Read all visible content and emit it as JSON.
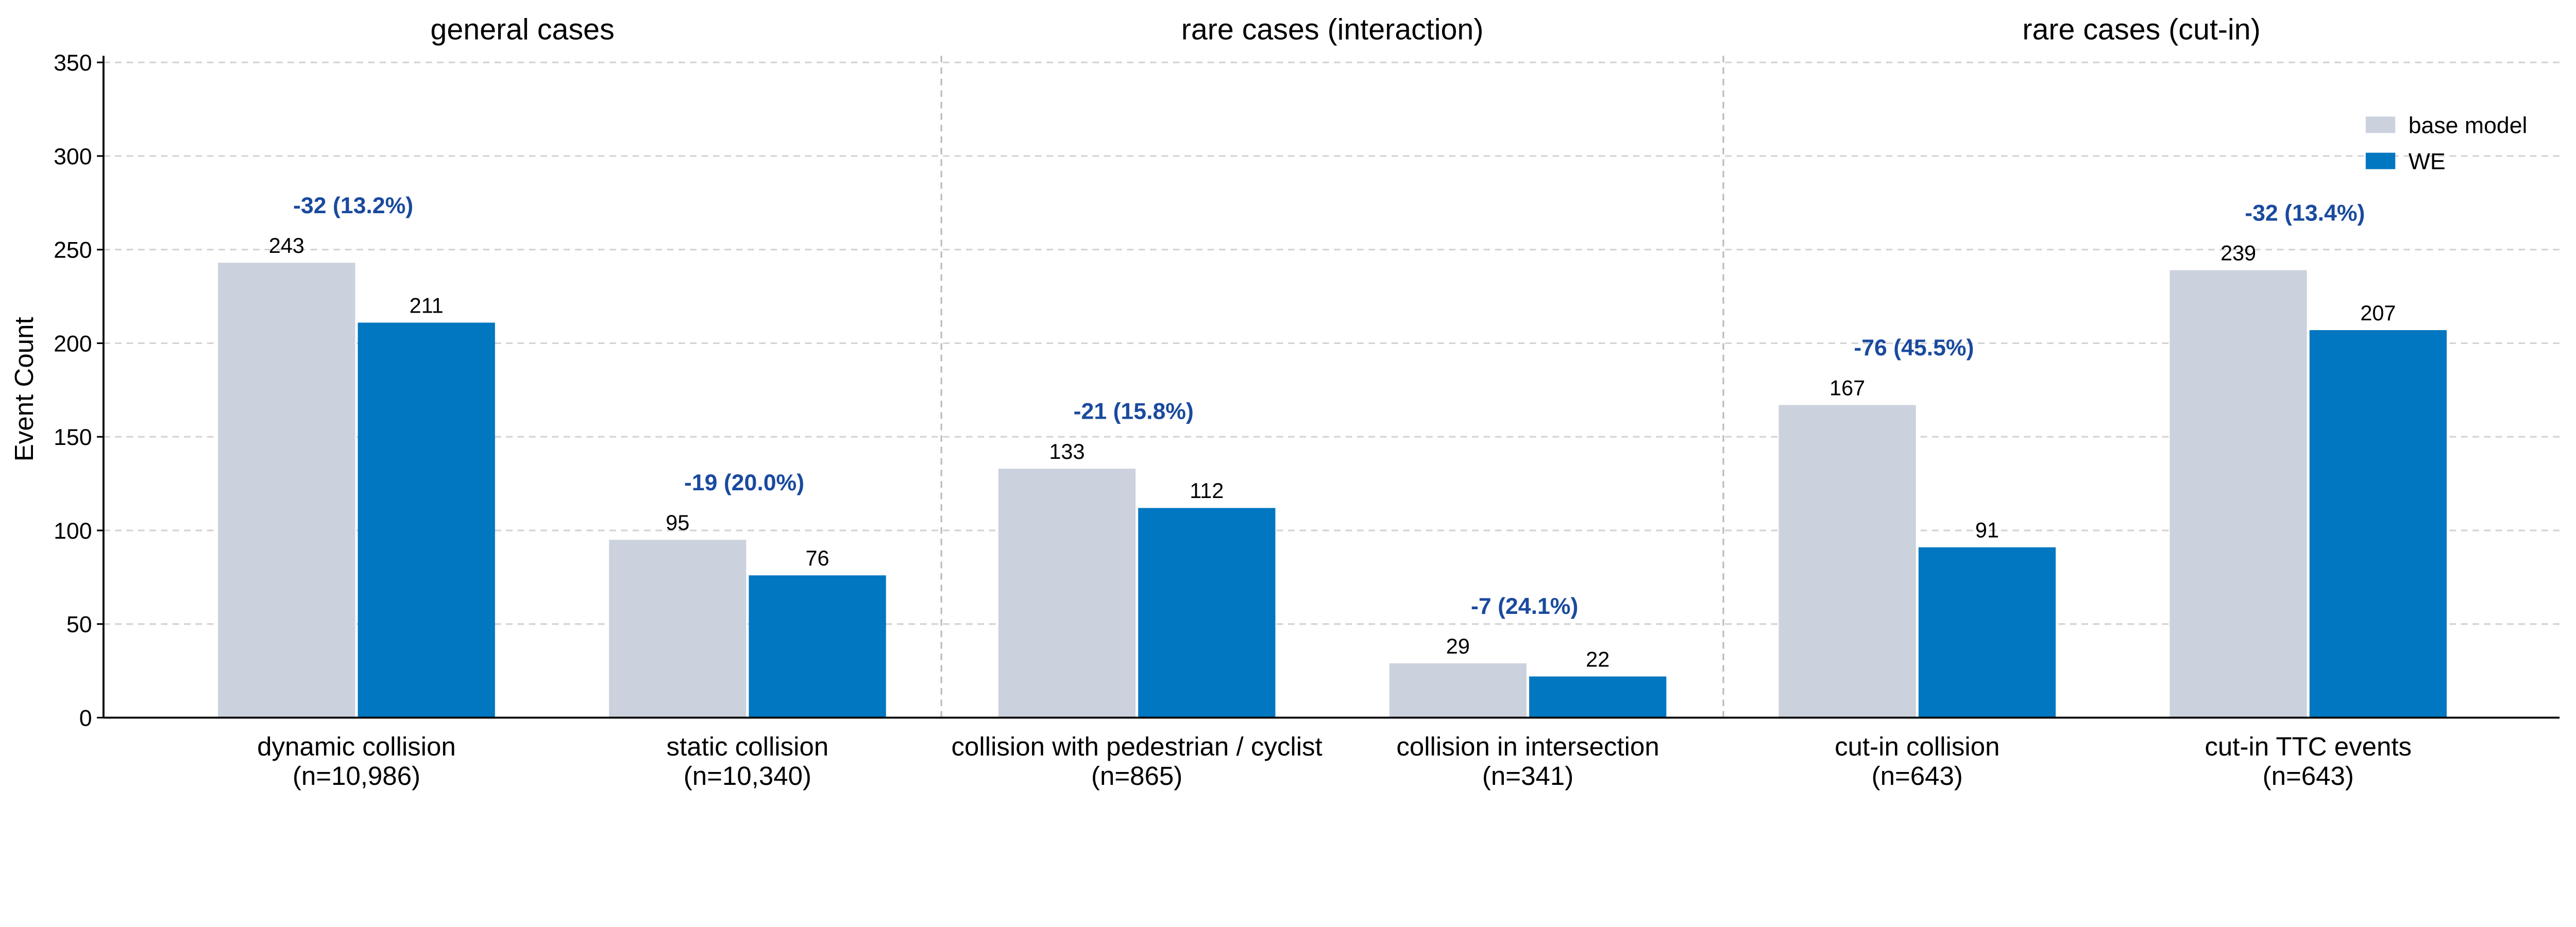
{
  "chart_data": {
    "type": "bar",
    "ylabel": "Event Count",
    "xlabel": "",
    "ylim": [
      0,
      350
    ],
    "yticks": [
      0,
      50,
      100,
      150,
      200,
      250,
      300,
      350
    ],
    "grid": "horizontal dashed",
    "legend_placement": "top-right",
    "panels": [
      {
        "title": "general cases",
        "category_indices": [
          0,
          1
        ]
      },
      {
        "title": "rare cases (interaction)",
        "category_indices": [
          2,
          3
        ]
      },
      {
        "title": "rare cases (cut-in)",
        "category_indices": [
          4,
          5
        ]
      }
    ],
    "categories": [
      {
        "name": "dynamic collision",
        "n": "(n=10,986)"
      },
      {
        "name": "static collision",
        "n": "(n=10,340)"
      },
      {
        "name": "collision with pedestrian / cyclist",
        "n": "(n=865)"
      },
      {
        "name": "collision in intersection",
        "n": "(n=341)"
      },
      {
        "name": "cut-in collision",
        "n": "(n=643)"
      },
      {
        "name": "cut-in TTC events",
        "n": "(n=643)"
      }
    ],
    "series": [
      {
        "name": "base model",
        "color": "#cbd2dd",
        "values": [
          243,
          95,
          133,
          29,
          167,
          239
        ]
      },
      {
        "name": "WE",
        "color": "#0077c0",
        "values": [
          211,
          76,
          112,
          22,
          91,
          207
        ]
      }
    ],
    "annotations": [
      "-32 (13.2%)",
      "-19 (20.0%)",
      "-21 (15.8%)",
      "-7 (24.1%)",
      "-76 (45.5%)",
      "-32 (13.4%)"
    ],
    "annotation_color": "#1a4a9e"
  }
}
